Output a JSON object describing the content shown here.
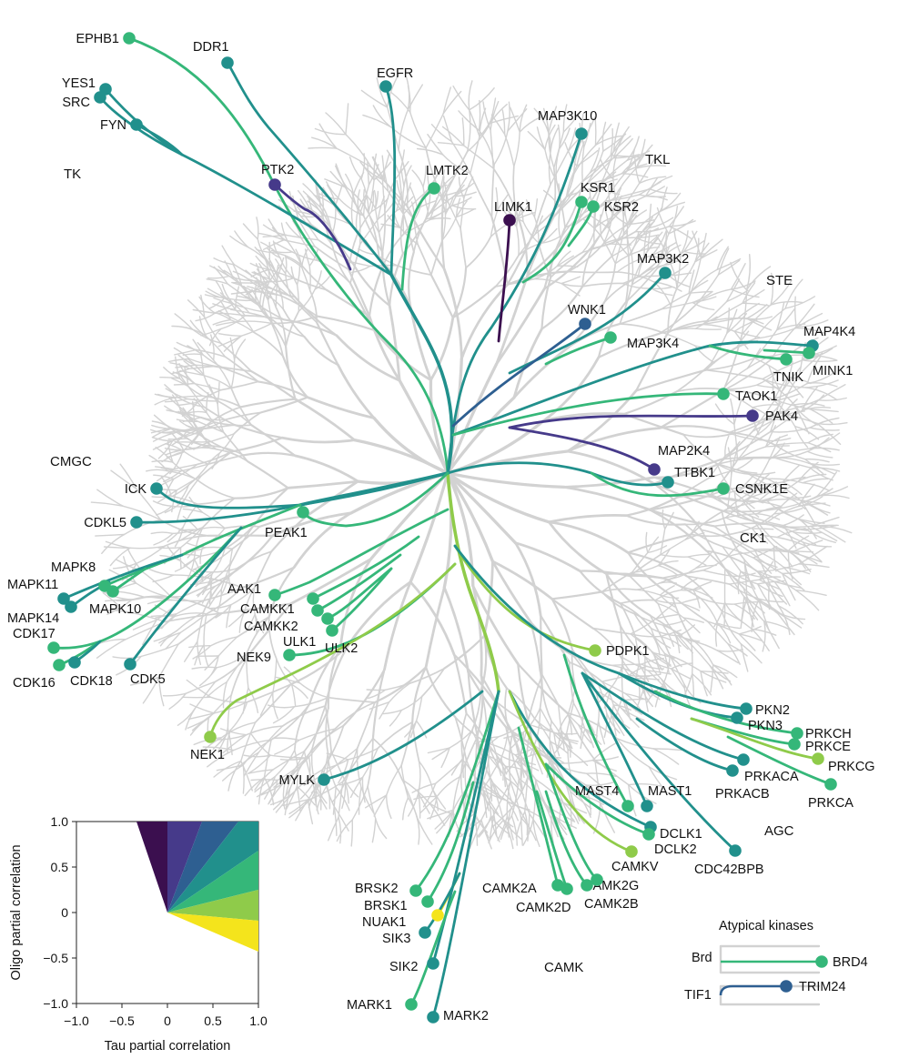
{
  "palette": {
    "c1": "#3b0f4f",
    "c2": "#463a8a",
    "c3": "#2e5f91",
    "c4": "#21908c",
    "c5": "#35b779",
    "c6": "#8fcb4a",
    "c7": "#f4e41c",
    "grey": "#d2d2d2"
  },
  "groups": [
    "TK",
    "TKL",
    "STE",
    "CMGC",
    "CK1",
    "AGC",
    "CAMK"
  ],
  "kinases": [
    {
      "name": "EPHB1",
      "color": "c5"
    },
    {
      "name": "DDR1",
      "color": "c4"
    },
    {
      "name": "YES1",
      "color": "c4"
    },
    {
      "name": "SRC",
      "color": "c4"
    },
    {
      "name": "FYN",
      "color": "c4"
    },
    {
      "name": "EGFR",
      "color": "c4"
    },
    {
      "name": "PTK2",
      "color": "c2"
    },
    {
      "name": "LMTK2",
      "color": "c5"
    },
    {
      "name": "MAP3K10",
      "color": "c4"
    },
    {
      "name": "LIMK1",
      "color": "c1"
    },
    {
      "name": "KSR1",
      "color": "c5"
    },
    {
      "name": "KSR2",
      "color": "c5"
    },
    {
      "name": "MAP3K2",
      "color": "c4"
    },
    {
      "name": "WNK1",
      "color": "c3"
    },
    {
      "name": "MAP3K4",
      "color": "c5"
    },
    {
      "name": "MAP4K4",
      "color": "c4"
    },
    {
      "name": "TNIK",
      "color": "c5"
    },
    {
      "name": "MINK1",
      "color": "c5"
    },
    {
      "name": "TAOK1",
      "color": "c5"
    },
    {
      "name": "PAK4",
      "color": "c2"
    },
    {
      "name": "MAP2K4",
      "color": "c2"
    },
    {
      "name": "TTBK1",
      "color": "c4"
    },
    {
      "name": "CSNK1E",
      "color": "c5"
    },
    {
      "name": "ICK",
      "color": "c4"
    },
    {
      "name": "CDKL5",
      "color": "c4"
    },
    {
      "name": "PEAK1",
      "color": "c5"
    },
    {
      "name": "MAPK8",
      "color": "c5"
    },
    {
      "name": "MAPK11",
      "color": "c4"
    },
    {
      "name": "MAPK10",
      "color": "c5"
    },
    {
      "name": "MAPK14",
      "color": "c4"
    },
    {
      "name": "CDK17",
      "color": "c5"
    },
    {
      "name": "CDK16",
      "color": "c5"
    },
    {
      "name": "CDK18",
      "color": "c4"
    },
    {
      "name": "CDK5",
      "color": "c4"
    },
    {
      "name": "AAK1",
      "color": "c5"
    },
    {
      "name": "CAMKK1",
      "color": "c5"
    },
    {
      "name": "CAMKK2",
      "color": "c5"
    },
    {
      "name": "ULK1",
      "color": "c5"
    },
    {
      "name": "ULK2",
      "color": "c5"
    },
    {
      "name": "NEK9",
      "color": "c5"
    },
    {
      "name": "NEK1",
      "color": "c6"
    },
    {
      "name": "PDPK1",
      "color": "c6"
    },
    {
      "name": "PKN2",
      "color": "c4"
    },
    {
      "name": "PKN3",
      "color": "c4"
    },
    {
      "name": "PRKCH",
      "color": "c5"
    },
    {
      "name": "PRKCE",
      "color": "c5"
    },
    {
      "name": "PRKCG",
      "color": "c6"
    },
    {
      "name": "PRKACA",
      "color": "c4"
    },
    {
      "name": "PRKACB",
      "color": "c4"
    },
    {
      "name": "PRKCA",
      "color": "c5"
    },
    {
      "name": "MYLK",
      "color": "c4"
    },
    {
      "name": "MAST4",
      "color": "c5"
    },
    {
      "name": "MAST1",
      "color": "c4"
    },
    {
      "name": "DCLK1",
      "color": "c4"
    },
    {
      "name": "DCLK2",
      "color": "c5"
    },
    {
      "name": "CAMKV",
      "color": "c6"
    },
    {
      "name": "CDC42BPB",
      "color": "c4"
    },
    {
      "name": "BRSK2",
      "color": "c5"
    },
    {
      "name": "BRSK1",
      "color": "c5"
    },
    {
      "name": "NUAK1",
      "color": "c7"
    },
    {
      "name": "SIK3",
      "color": "c4"
    },
    {
      "name": "CAMK2A",
      "color": "c5"
    },
    {
      "name": "CAMK2G",
      "color": "c5"
    },
    {
      "name": "CAMK2D",
      "color": "c5"
    },
    {
      "name": "CAMK2B",
      "color": "c5"
    },
    {
      "name": "SIK2",
      "color": "c4"
    },
    {
      "name": "MARK1",
      "color": "c5"
    },
    {
      "name": "MARK2",
      "color": "c4"
    }
  ],
  "atypical": {
    "title": "Atypical kinases",
    "rows": [
      {
        "family": "Brd",
        "kinase": "BRD4",
        "color": "c5"
      },
      {
        "family": "TIF1",
        "kinase": "TRIM24",
        "color": "c3"
      }
    ]
  },
  "legend": {
    "xlabel": "Tau partial correlation",
    "ylabel": "Oligo partial correlation",
    "xticks": [
      "−1.0",
      "−0.5",
      "0",
      "0.5",
      "1.0"
    ],
    "yticks": [
      "1.0",
      "0.5",
      "0",
      "−0.5",
      "−1.0"
    ]
  }
}
